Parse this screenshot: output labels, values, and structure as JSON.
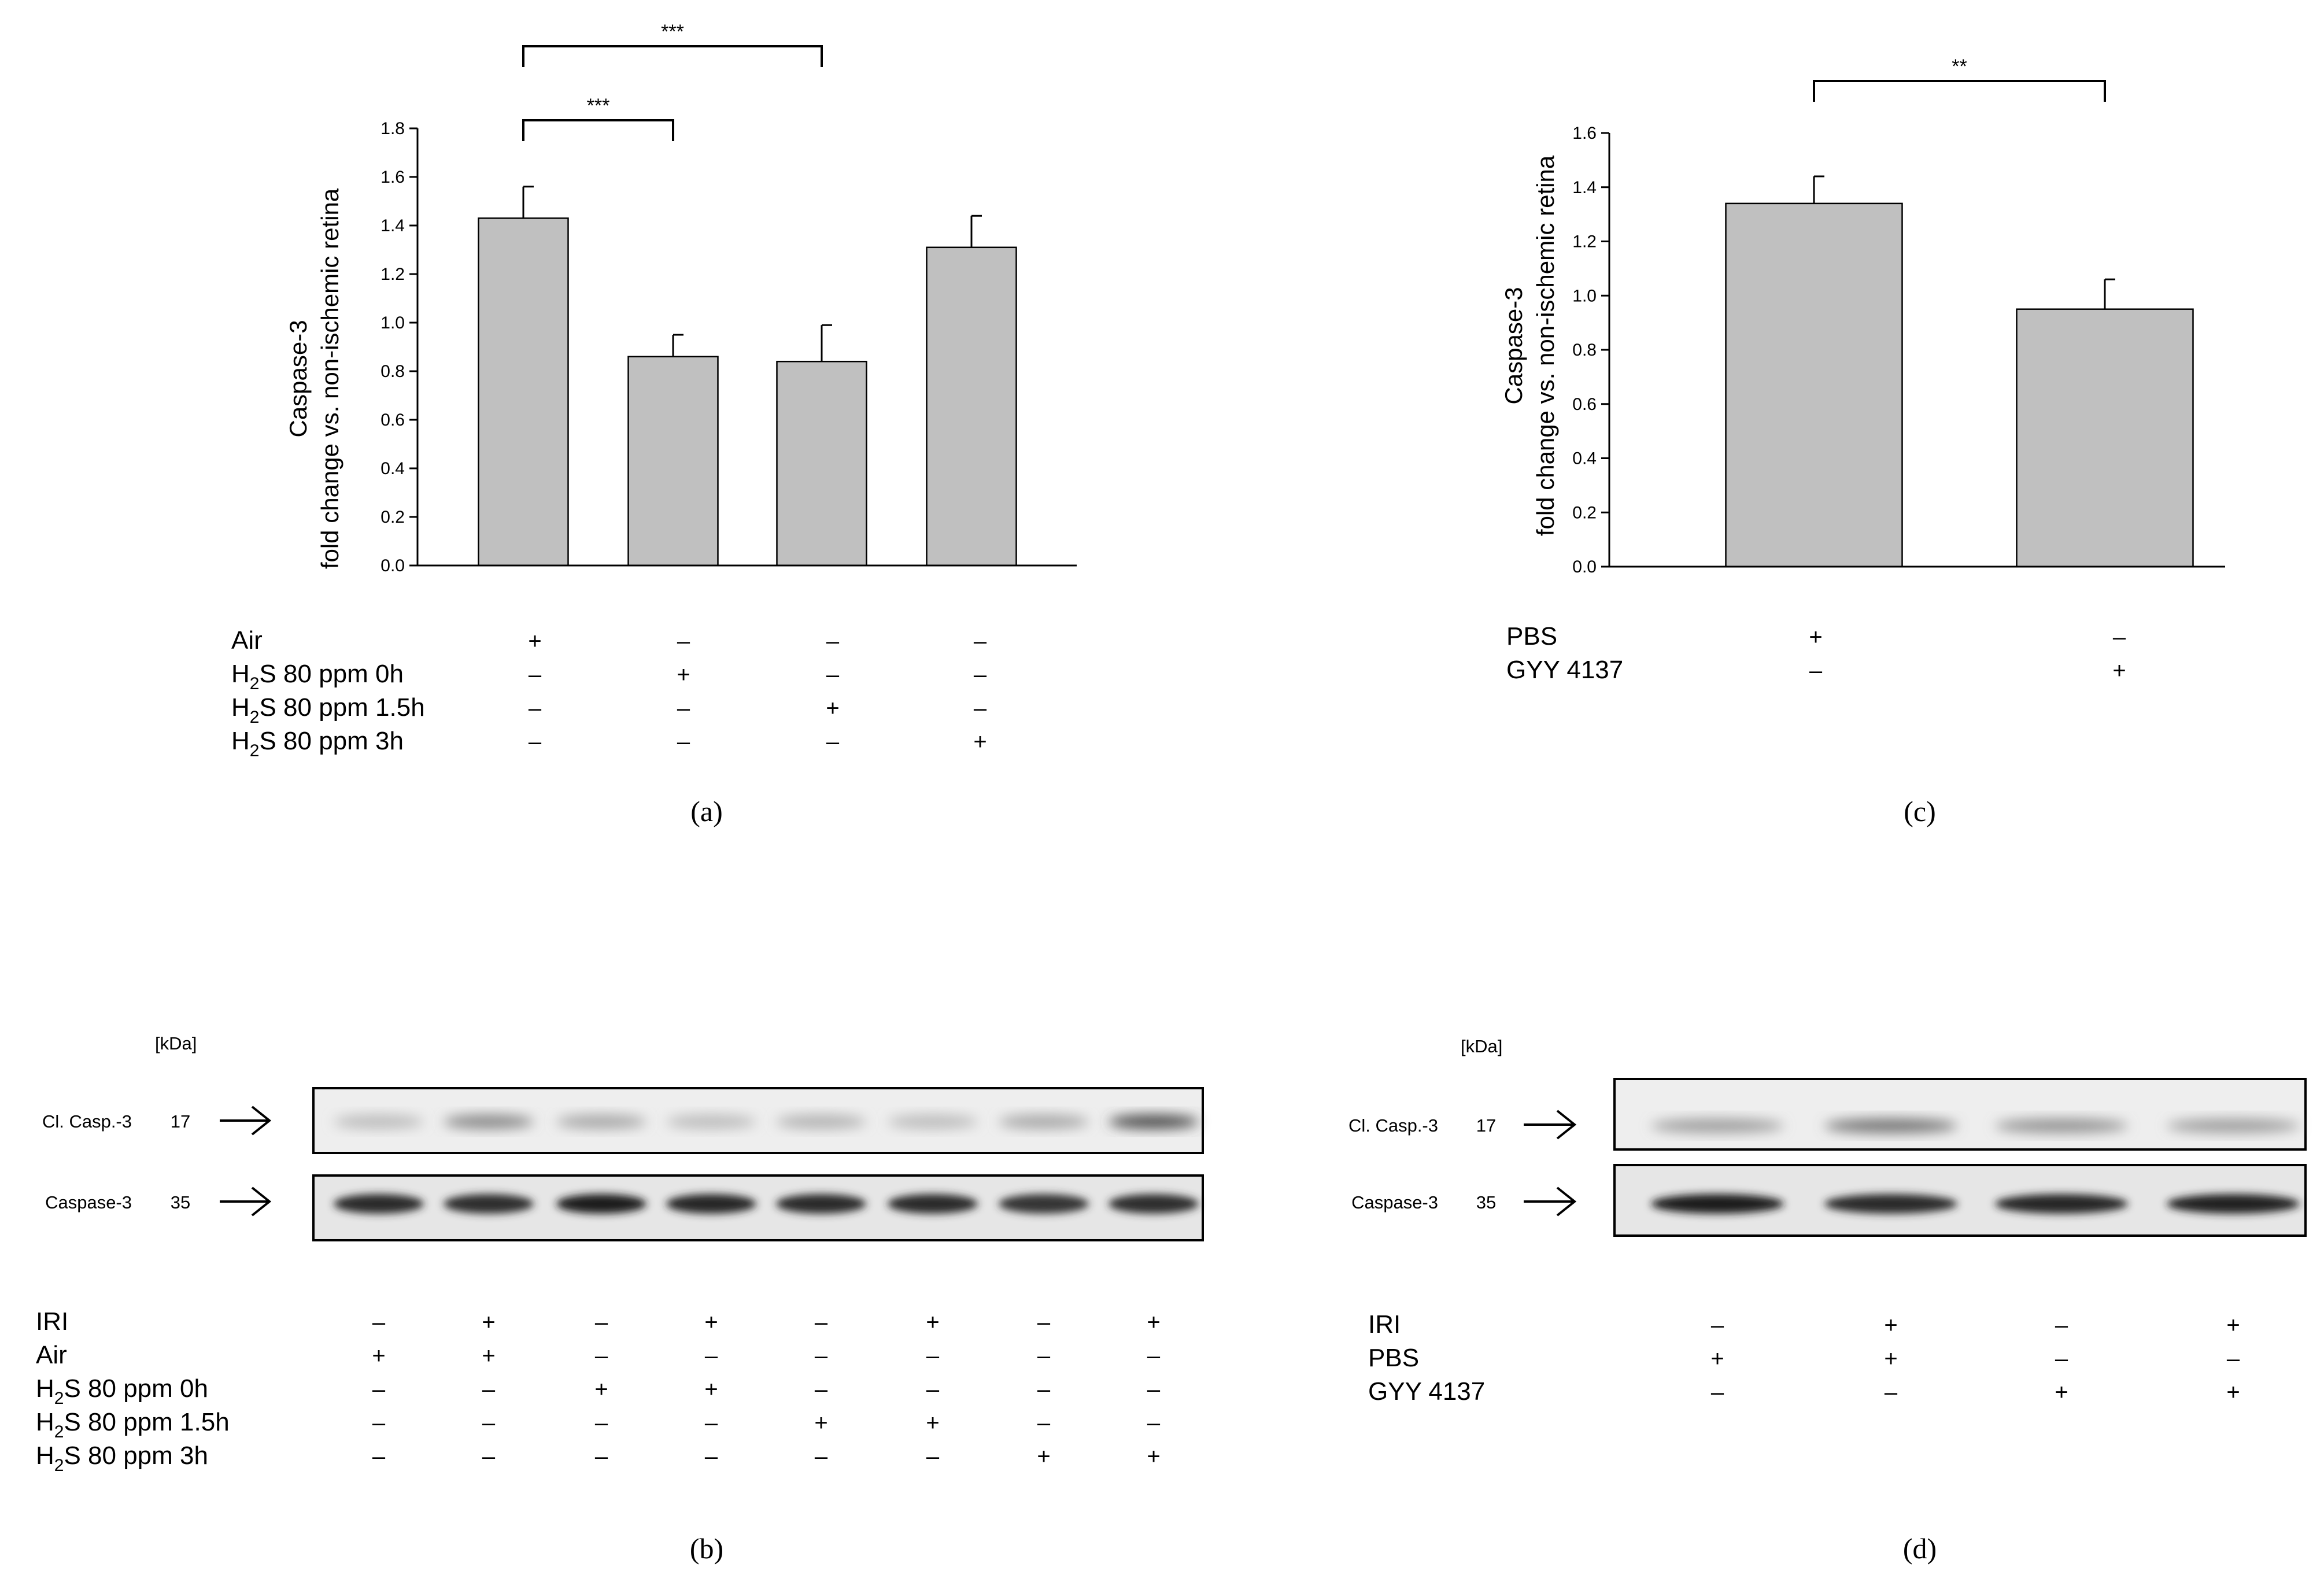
{
  "chart_data": [
    {
      "id": "a",
      "type": "bar",
      "panel_label": "(a)",
      "ylabel_line1": "Caspase-3",
      "ylabel_line2": "fold change vs. non-ischemic retina",
      "ylim": [
        0,
        1.8
      ],
      "yticks": [
        "0.0",
        "0.2",
        "0.4",
        "0.6",
        "0.8",
        "1.0",
        "1.2",
        "1.4",
        "1.6",
        "1.8"
      ],
      "values": [
        1.43,
        0.86,
        0.84,
        1.31
      ],
      "errors": [
        0.13,
        0.09,
        0.15,
        0.13
      ],
      "conditions": [
        {
          "label": "Air",
          "signs": [
            "+",
            "–",
            "–",
            "–"
          ]
        },
        {
          "label_pre": "H",
          "label_sub": "2",
          "label_post": "S 80 ppm 0h",
          "signs": [
            "–",
            "+",
            "–",
            "–"
          ]
        },
        {
          "label_pre": "H",
          "label_sub": "2",
          "label_post": "S 80 ppm 1.5h",
          "signs": [
            "–",
            "–",
            "+",
            "–"
          ]
        },
        {
          "label_pre": "H",
          "label_sub": "2",
          "label_post": "S 80 ppm 3h",
          "signs": [
            "–",
            "–",
            "–",
            "+"
          ]
        }
      ],
      "significance": [
        {
          "from": 0,
          "to": 2,
          "label": "***"
        },
        {
          "from": 0,
          "to": 1,
          "label": "***"
        }
      ],
      "grid": false
    },
    {
      "id": "c",
      "type": "bar",
      "panel_label": "(c)",
      "ylabel_line1": "Caspase-3",
      "ylabel_line2": "fold change vs. non-ischemic retina",
      "ylim": [
        0,
        1.6
      ],
      "yticks": [
        "0.0",
        "0.2",
        "0.4",
        "0.6",
        "0.8",
        "1.0",
        "1.2",
        "1.4",
        "1.6"
      ],
      "values": [
        1.34,
        0.95
      ],
      "errors": [
        0.1,
        0.11
      ],
      "conditions": [
        {
          "label": "PBS",
          "signs": [
            "+",
            "–"
          ]
        },
        {
          "label": "GYY 4137",
          "signs": [
            "–",
            "+"
          ]
        }
      ],
      "significance": [
        {
          "from": 0,
          "to": 1,
          "label": "**"
        }
      ],
      "grid": false
    }
  ],
  "blots": [
    {
      "id": "b",
      "panel_label": "(b)",
      "unit": "[kDa]",
      "rows": [
        {
          "label": "Cl. Casp.-3",
          "kda": "17",
          "intensity": [
            0.2,
            0.45,
            0.3,
            0.2,
            0.25,
            0.2,
            0.3,
            0.75
          ]
        },
        {
          "label": "Caspase-3",
          "kda": "35",
          "intensity": [
            0.9,
            0.88,
            0.95,
            0.92,
            0.9,
            0.9,
            0.85,
            0.88
          ]
        }
      ],
      "conditions": [
        {
          "label": "IRI",
          "signs": [
            "–",
            "+",
            "–",
            "+",
            "–",
            "+",
            "–",
            "+"
          ]
        },
        {
          "label": "Air",
          "signs": [
            "+",
            "+",
            "–",
            "–",
            "–",
            "–",
            "–",
            "–"
          ]
        },
        {
          "label_pre": "H",
          "label_sub": "2",
          "label_post": "S 80 ppm 0h",
          "signs": [
            "–",
            "–",
            "+",
            "+",
            "–",
            "–",
            "–",
            "–"
          ]
        },
        {
          "label_pre": "H",
          "label_sub": "2",
          "label_post": "S 80 ppm 1.5h",
          "signs": [
            "–",
            "–",
            "–",
            "–",
            "+",
            "+",
            "–",
            "–"
          ]
        },
        {
          "label_pre": "H",
          "label_sub": "2",
          "label_post": "S 80 ppm 3h",
          "signs": [
            "–",
            "–",
            "–",
            "–",
            "–",
            "–",
            "+",
            "+"
          ]
        }
      ]
    },
    {
      "id": "d",
      "panel_label": "(d)",
      "unit": "[kDa]",
      "rows": [
        {
          "label": "Cl. Casp.-3",
          "kda": "17",
          "intensity": [
            0.35,
            0.55,
            0.4,
            0.35
          ]
        },
        {
          "label": "Caspase-3",
          "kda": "35",
          "intensity": [
            0.95,
            0.9,
            0.92,
            0.93
          ]
        }
      ],
      "conditions": [
        {
          "label": "IRI",
          "signs": [
            "–",
            "+",
            "–",
            "+"
          ]
        },
        {
          "label": "PBS",
          "signs": [
            "+",
            "+",
            "–",
            "–"
          ]
        },
        {
          "label": "GYY 4137",
          "signs": [
            "–",
            "–",
            "+",
            "+"
          ]
        }
      ]
    }
  ]
}
